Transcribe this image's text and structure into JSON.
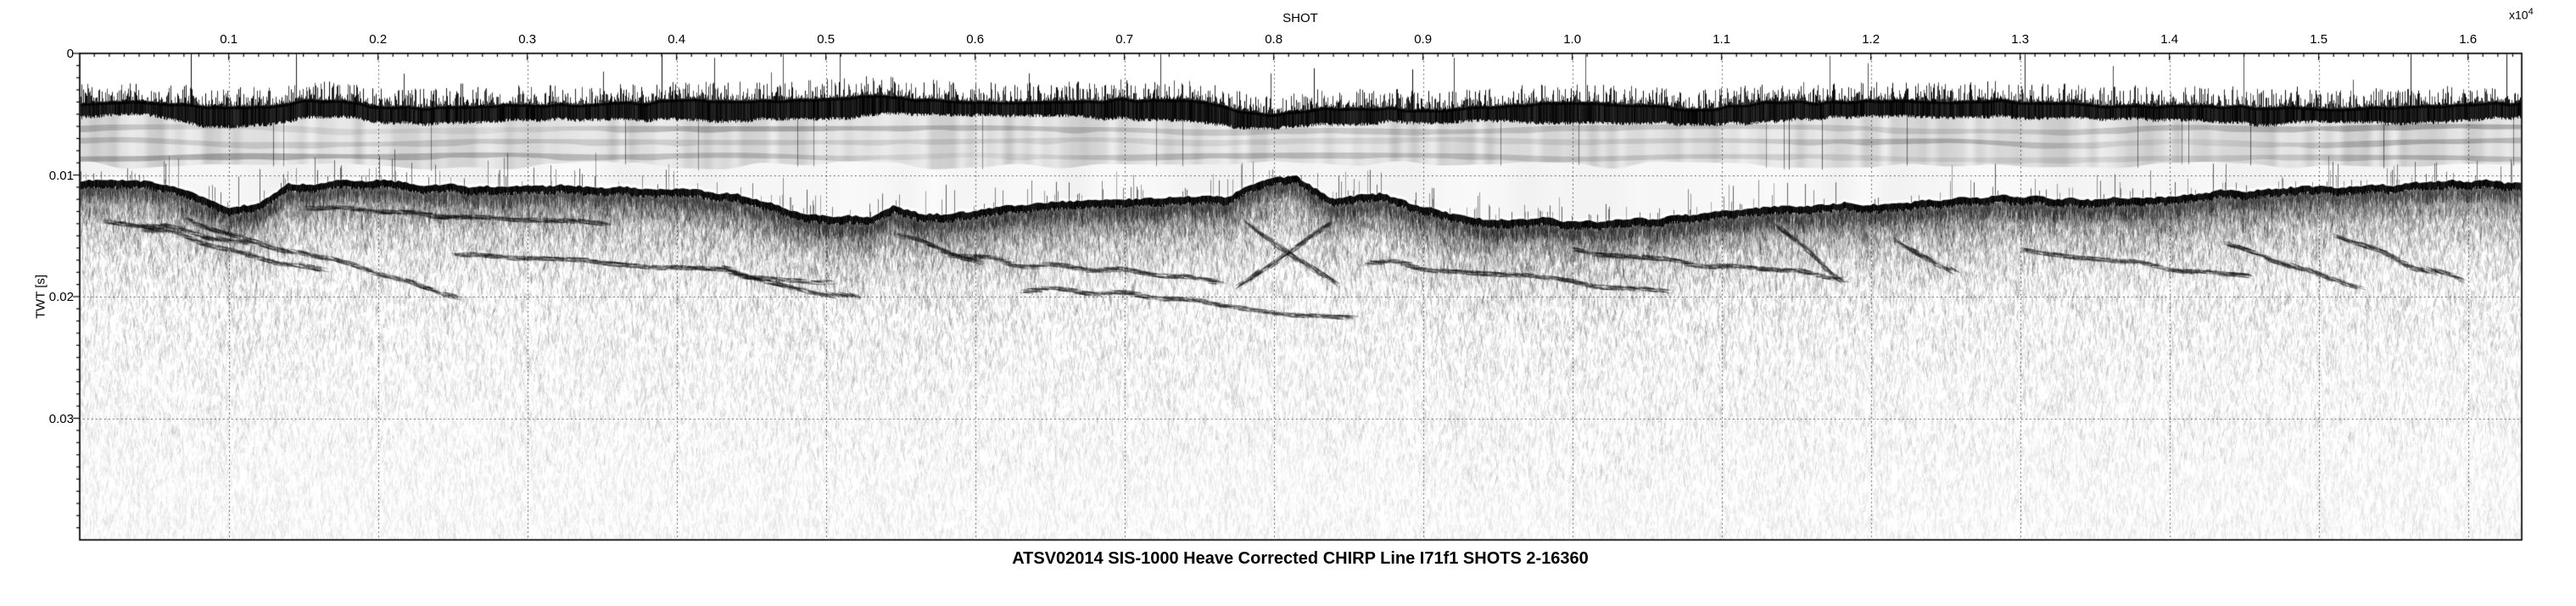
{
  "chart_data": {
    "type": "heatmap",
    "title": "ATSV02014 SIS-1000 Heave Corrected CHIRP Line I71f1 SHOTS 2-16360",
    "xlabel": "SHOT",
    "x_scale_label": {
      "base": "x10",
      "exponent": "4"
    },
    "ylabel": "TWT [s]",
    "xlim": [
      2,
      16360
    ],
    "ylim": [
      0,
      0.04
    ],
    "x_minor_step": 100,
    "y_minor_step": 0.001,
    "grid": {
      "style": "dotted",
      "x_at_major_ticks": true,
      "y_at_major_ticks": true
    },
    "x_ticks": [
      {
        "value": 1000,
        "label": "0.1"
      },
      {
        "value": 2000,
        "label": "0.2"
      },
      {
        "value": 3000,
        "label": "0.3"
      },
      {
        "value": 4000,
        "label": "0.4"
      },
      {
        "value": 5000,
        "label": "0.5"
      },
      {
        "value": 6000,
        "label": "0.6"
      },
      {
        "value": 7000,
        "label": "0.7"
      },
      {
        "value": 8000,
        "label": "0.8"
      },
      {
        "value": 9000,
        "label": "0.9"
      },
      {
        "value": 10000,
        "label": "1.0"
      },
      {
        "value": 11000,
        "label": "1.1"
      },
      {
        "value": 12000,
        "label": "1.2"
      },
      {
        "value": 13000,
        "label": "1.3"
      },
      {
        "value": 14000,
        "label": "1.4"
      },
      {
        "value": 15000,
        "label": "1.5"
      },
      {
        "value": 16000,
        "label": "1.6"
      }
    ],
    "y_ticks": [
      {
        "value": 0,
        "label": "0"
      },
      {
        "value": 0.01,
        "label": "0.01"
      },
      {
        "value": 0.02,
        "label": "0.02"
      },
      {
        "value": 0.03,
        "label": "0.03"
      }
    ],
    "surface_band": {
      "center_twt": 0.0047,
      "half_thickness_twt": 0.0006,
      "dips": [
        {
          "shot": 1050,
          "delta_twt": 0.0009,
          "width_shots": 350
        },
        {
          "shot": 7950,
          "delta_twt": 0.0007,
          "width_shots": 400
        },
        {
          "shot": 5450,
          "delta_twt": -0.0004,
          "width_shots": 600
        },
        {
          "shot": 13600,
          "delta_twt": 0.0003,
          "width_shots": 800
        }
      ]
    },
    "ringdown_bands_twt": [
      0.0062,
      0.0073,
      0.0085
    ],
    "ringdown_zone_bottom_twt": 0.0092,
    "seafloor_profile": [
      [
        2,
        0.0106
      ],
      [
        400,
        0.0107
      ],
      [
        700,
        0.0112
      ],
      [
        1000,
        0.0128
      ],
      [
        1200,
        0.0127
      ],
      [
        1400,
        0.0109
      ],
      [
        1700,
        0.0107
      ],
      [
        2200,
        0.0108
      ],
      [
        2800,
        0.0112
      ],
      [
        3100,
        0.0111
      ],
      [
        3700,
        0.0113
      ],
      [
        4300,
        0.0116
      ],
      [
        4800,
        0.0131
      ],
      [
        5000,
        0.0135
      ],
      [
        5300,
        0.0136
      ],
      [
        5450,
        0.0127
      ],
      [
        5650,
        0.0133
      ],
      [
        6000,
        0.0133
      ],
      [
        6250,
        0.0126
      ],
      [
        6600,
        0.0123
      ],
      [
        7200,
        0.0122
      ],
      [
        7700,
        0.0119
      ],
      [
        7950,
        0.0104
      ],
      [
        8150,
        0.0103
      ],
      [
        8380,
        0.0123
      ],
      [
        8700,
        0.0116
      ],
      [
        9000,
        0.0127
      ],
      [
        9300,
        0.0137
      ],
      [
        10000,
        0.0139
      ],
      [
        10500,
        0.0139
      ],
      [
        11000,
        0.0132
      ],
      [
        11500,
        0.0128
      ],
      [
        12000,
        0.0125
      ],
      [
        12600,
        0.0122
      ],
      [
        12950,
        0.0118
      ],
      [
        13200,
        0.0121
      ],
      [
        13400,
        0.0123
      ],
      [
        14000,
        0.0118
      ],
      [
        14600,
        0.0114
      ],
      [
        15200,
        0.0111
      ],
      [
        15800,
        0.0108
      ],
      [
        16360,
        0.0107
      ]
    ],
    "subsurface_reflectors": [
      [
        [
          150,
          0.0136
        ],
        [
          1100,
          0.0155
        ]
      ],
      [
        [
          400,
          0.0143
        ],
        [
          1600,
          0.0178
        ]
      ],
      [
        [
          700,
          0.0137
        ],
        [
          2500,
          0.02
        ]
      ],
      [
        [
          1500,
          0.0128
        ],
        [
          3500,
          0.0142
        ]
      ],
      [
        [
          2500,
          0.0166
        ],
        [
          5000,
          0.0186
        ]
      ],
      [
        [
          4300,
          0.0177
        ],
        [
          5200,
          0.0202
        ]
      ],
      [
        [
          5450,
          0.0149
        ],
        [
          6000,
          0.0172
        ]
      ],
      [
        [
          5800,
          0.0166
        ],
        [
          7600,
          0.0188
        ]
      ],
      [
        [
          6300,
          0.0192
        ],
        [
          8500,
          0.0216
        ]
      ],
      [
        [
          7800,
          0.0136
        ],
        [
          8400,
          0.0186
        ]
      ],
      [
        [
          8400,
          0.0136
        ],
        [
          7800,
          0.0186
        ]
      ],
      [
        [
          8600,
          0.0172
        ],
        [
          10600,
          0.0196
        ]
      ],
      [
        [
          10000,
          0.0162
        ],
        [
          11800,
          0.0186
        ]
      ],
      [
        [
          11350,
          0.0142
        ],
        [
          11760,
          0.0184
        ]
      ],
      [
        [
          12150,
          0.0151
        ],
        [
          12530,
          0.0177
        ]
      ],
      [
        [
          13000,
          0.0162
        ],
        [
          14500,
          0.0186
        ]
      ],
      [
        [
          14350,
          0.0158
        ],
        [
          15250,
          0.0193
        ]
      ],
      [
        [
          15100,
          0.0151
        ],
        [
          15950,
          0.0186
        ]
      ]
    ]
  }
}
